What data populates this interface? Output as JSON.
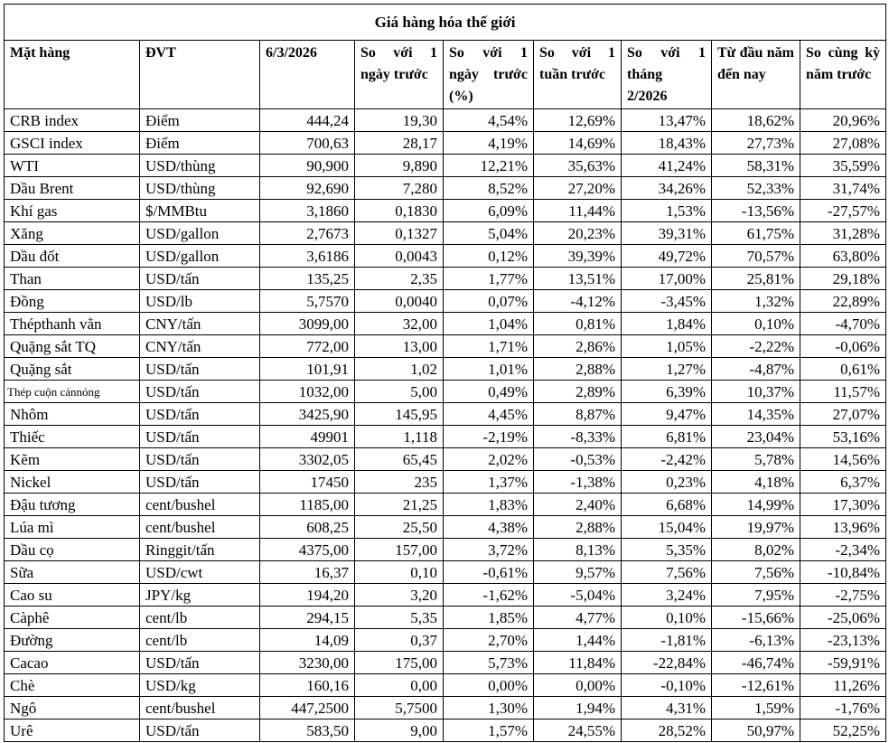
{
  "table": {
    "title": "Giá hàng hóa thế giới",
    "header": [
      "Mặt hàng",
      "ĐVT",
      "6/3/2026",
      "So với 1 ngày trước",
      "So với 1 ngày trước (%)",
      "So với 1 tuần trước",
      "So với 1 tháng 2/2026",
      "Từ đầu năm đến nay",
      "So cùng kỳ năm trước"
    ],
    "rows": [
      [
        "CRB index",
        "Điểm",
        "444,24",
        "19,30",
        "4,54%",
        "12,69%",
        "13,47%",
        "18,62%",
        "20,96%"
      ],
      [
        "GSCI index",
        "Điểm",
        "700,63",
        "28,17",
        "4,19%",
        "14,69%",
        "18,43%",
        "27,73%",
        "27,08%"
      ],
      [
        "WTI",
        "USD/thùng",
        "90,900",
        "9,890",
        "12,21%",
        "35,63%",
        "41,24%",
        "58,31%",
        "35,59%"
      ],
      [
        "Dầu Brent",
        "USD/thùng",
        "92,690",
        "7,280",
        "8,52%",
        "27,20%",
        "34,26%",
        "52,33%",
        "31,74%"
      ],
      [
        "Khí gas",
        "$/MMBtu",
        "3,1860",
        "0,1830",
        "6,09%",
        "11,44%",
        "1,53%",
        "-13,56%",
        "-27,57%"
      ],
      [
        "Xăng",
        "USD/gallon",
        "2,7673",
        "0,1327",
        "5,04%",
        "20,23%",
        "39,31%",
        "61,75%",
        "31,28%"
      ],
      [
        "Dầu đốt",
        "USD/gallon",
        "3,6186",
        "0,0043",
        "0,12%",
        "39,39%",
        "49,72%",
        "70,57%",
        "63,80%"
      ],
      [
        "Than",
        "USD/tấn",
        "135,25",
        "2,35",
        "1,77%",
        "13,51%",
        "17,00%",
        "25,81%",
        "29,18%"
      ],
      [
        "Đồng",
        "USD/lb",
        "5,7570",
        "0,0040",
        "0,07%",
        "-4,12%",
        "-3,45%",
        "1,32%",
        "22,89%"
      ],
      [
        "Thépthanh vằn",
        "CNY/tấn",
        "3099,00",
        "32,00",
        "1,04%",
        "0,81%",
        "1,84%",
        "0,10%",
        "-4,70%"
      ],
      [
        "Quặng sắt TQ",
        "CNY/tấn",
        "772,00",
        "13,00",
        "1,71%",
        "2,86%",
        "1,05%",
        "-2,22%",
        "-0,06%"
      ],
      [
        "Quặng sắt",
        "USD/tấn",
        "101,91",
        "1,02",
        "1,01%",
        "2,88%",
        "1,27%",
        "-4,87%",
        "0,61%"
      ],
      [
        "Thép cuộn cánnóng",
        "USD/tấn",
        "1032,00",
        "5,00",
        "0,49%",
        "2,89%",
        "6,39%",
        "10,37%",
        "11,57%"
      ],
      [
        "Nhôm",
        "USD/tấn",
        "3425,90",
        "145,95",
        "4,45%",
        "8,87%",
        "9,47%",
        "14,35%",
        "27,07%"
      ],
      [
        "Thiếc",
        "USD/tấn",
        "49901",
        "1,118",
        "-2,19%",
        "-8,33%",
        "6,81%",
        "23,04%",
        "53,16%"
      ],
      [
        "Kẽm",
        "USD/tấn",
        "3302,05",
        "65,45",
        "2,02%",
        "-0,53%",
        "-2,42%",
        "5,78%",
        "14,56%"
      ],
      [
        "Nickel",
        "USD/tấn",
        "17450",
        "235",
        "1,37%",
        "-1,38%",
        "0,23%",
        "4,18%",
        "6,37%"
      ],
      [
        "Đậu tương",
        "cent/bushel",
        "1185,00",
        "21,25",
        "1,83%",
        "2,40%",
        "6,68%",
        "14,99%",
        "17,30%"
      ],
      [
        "Lúa mì",
        "cent/bushel",
        "608,25",
        "25,50",
        "4,38%",
        "2,88%",
        "15,04%",
        "19,97%",
        "13,96%"
      ],
      [
        "Dầu cọ",
        "Ringgit/tấn",
        "4375,00",
        "157,00",
        "3,72%",
        "8,13%",
        "5,35%",
        "8,02%",
        "-2,34%"
      ],
      [
        "Sữa",
        "USD/cwt",
        "16,37",
        "0,10",
        "-0,61%",
        "9,57%",
        "7,56%",
        "7,56%",
        "-10,84%"
      ],
      [
        "Cao su",
        "JPY/kg",
        "194,20",
        "3,20",
        "-1,62%",
        "-5,04%",
        "3,24%",
        "7,95%",
        "-2,75%"
      ],
      [
        "Càphê",
        "cent/lb",
        "294,15",
        "5,35",
        "1,85%",
        "4,77%",
        "0,10%",
        "-15,66%",
        "-25,06%"
      ],
      [
        "Đường",
        "cent/lb",
        "14,09",
        "0,37",
        "2,70%",
        "1,44%",
        "-1,81%",
        "-6,13%",
        "-23,13%"
      ],
      [
        "Cacao",
        "USD/tấn",
        "3230,00",
        "175,00",
        "5,73%",
        "11,84%",
        "-22,84%",
        "-46,74%",
        "-59,91%"
      ],
      [
        "Chè",
        "USD/kg",
        "160,16",
        "0,00",
        "0,00%",
        "0,00%",
        "-0,10%",
        "-12,61%",
        "11,26%"
      ],
      [
        "Ngô",
        "cent/bushel",
        "447,2500",
        "5,7500",
        "1,30%",
        "1,94%",
        "4,31%",
        "1,59%",
        "-1,76%"
      ],
      [
        "Urê",
        "USD/tấn",
        "583,50",
        "9,00",
        "1,57%",
        "24,55%",
        "28,52%",
        "50,97%",
        "52,25%"
      ]
    ]
  }
}
